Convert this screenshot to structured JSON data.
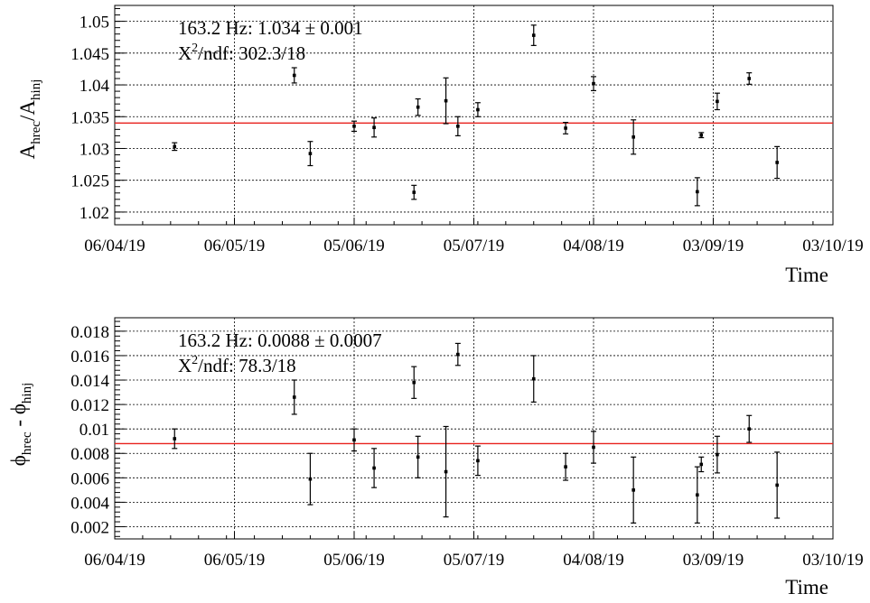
{
  "chart_data": [
    {
      "type": "scatter",
      "ylabel_base": "A",
      "ylabel_sub1": "hrec",
      "ylabel_sep": "/",
      "ylabel_sub2": "hinj",
      "xlabel": "Time",
      "xlim": [
        "2019-04-06",
        "2019-10-03"
      ],
      "ylim": [
        1.018,
        1.0525
      ],
      "x_ticks": [
        "06/04/19",
        "06/05/19",
        "05/06/19",
        "05/07/19",
        "04/08/19",
        "03/09/19",
        "03/10/19"
      ],
      "y_ticks": [
        "1.02",
        "1.025",
        "1.03",
        "1.035",
        "1.04",
        "1.045",
        "1.05"
      ],
      "fit_value": 1.034,
      "fit_color": "#e8201c",
      "annotation_line1": "163.2 Hz: 1.034  ± 0.001",
      "annotation_chi_base": "X",
      "annotation_chi_sup": "2",
      "annotation_chi_rest": "/ndf: 302.3/18",
      "grid": true,
      "points": [
        {
          "x": "2019-04-21",
          "y": 1.0303,
          "err": 0.0006
        },
        {
          "x": "2019-05-21",
          "y": 1.0415,
          "err": 0.0012
        },
        {
          "x": "2019-05-25",
          "y": 1.0292,
          "err": 0.0019
        },
        {
          "x": "2019-06-10",
          "y": 1.0333,
          "err": 0.0015
        },
        {
          "x": "2019-06-21",
          "y": 1.0365,
          "err": 0.0013
        },
        {
          "x": "2019-06-05",
          "y": 1.0335,
          "err": 0.0008
        },
        {
          "x": "2019-06-20",
          "y": 1.0231,
          "err": 0.0011
        },
        {
          "x": "2019-07-01",
          "y": 1.0335,
          "err": 0.0015
        },
        {
          "x": "2019-06-28",
          "y": 1.0375,
          "err": 0.0036
        },
        {
          "x": "2019-07-06",
          "y": 1.0361,
          "err": 0.0011
        },
        {
          "x": "2019-07-20",
          "y": 1.0478,
          "err": 0.0016
        },
        {
          "x": "2019-07-28",
          "y": 1.0332,
          "err": 0.0009
        },
        {
          "x": "2019-08-04",
          "y": 1.0402,
          "err": 0.0011
        },
        {
          "x": "2019-08-14",
          "y": 1.0318,
          "err": 0.0027
        },
        {
          "x": "2019-08-30",
          "y": 1.0232,
          "err": 0.0022
        },
        {
          "x": "2019-08-31",
          "y": 1.0321,
          "err": 0.0004
        },
        {
          "x": "2019-09-04",
          "y": 1.0374,
          "err": 0.0013
        },
        {
          "x": "2019-09-12",
          "y": 1.041,
          "err": 0.0009
        },
        {
          "x": "2019-09-19",
          "y": 1.0278,
          "err": 0.0025
        }
      ]
    },
    {
      "type": "scatter",
      "ylabel_base": "ϕ",
      "ylabel_sub1": "hrec",
      "ylabel_sep": " - ϕ",
      "ylabel_sub2": "hinj",
      "xlabel": "Time",
      "xlim": [
        "2019-04-06",
        "2019-10-03"
      ],
      "ylim": [
        0.001,
        0.0191
      ],
      "x_ticks": [
        "06/04/19",
        "06/05/19",
        "05/06/19",
        "05/07/19",
        "04/08/19",
        "03/09/19",
        "03/10/19"
      ],
      "y_ticks": [
        "0.002",
        "0.004",
        "0.006",
        "0.008",
        "0.01",
        "0.012",
        "0.014",
        "0.016",
        "0.018"
      ],
      "fit_value": 0.0088,
      "fit_color": "#e8201c",
      "annotation_line1": "163.2 Hz: 0.0088  ± 0.0007",
      "annotation_chi_base": "X",
      "annotation_chi_sup": "2",
      "annotation_chi_rest": "/ndf: 78.3/18",
      "grid": true,
      "points": [
        {
          "x": "2019-04-21",
          "y": 0.0092,
          "err": 0.0008
        },
        {
          "x": "2019-05-21",
          "y": 0.0126,
          "err": 0.0014
        },
        {
          "x": "2019-05-25",
          "y": 0.0059,
          "err": 0.0021
        },
        {
          "x": "2019-06-10",
          "y": 0.0068,
          "err": 0.0016
        },
        {
          "x": "2019-06-21",
          "y": 0.0077,
          "err": 0.0017
        },
        {
          "x": "2019-06-05",
          "y": 0.0091,
          "err": 0.0009
        },
        {
          "x": "2019-06-20",
          "y": 0.0138,
          "err": 0.0013
        },
        {
          "x": "2019-07-01",
          "y": 0.0161,
          "err": 0.0009
        },
        {
          "x": "2019-06-28",
          "y": 0.0065,
          "err": 0.0037
        },
        {
          "x": "2019-07-06",
          "y": 0.0074,
          "err": 0.0012
        },
        {
          "x": "2019-07-20",
          "y": 0.0141,
          "err": 0.0019
        },
        {
          "x": "2019-07-28",
          "y": 0.0069,
          "err": 0.0011
        },
        {
          "x": "2019-08-04",
          "y": 0.0085,
          "err": 0.0013
        },
        {
          "x": "2019-08-14",
          "y": 0.005,
          "err": 0.0027
        },
        {
          "x": "2019-08-30",
          "y": 0.0046,
          "err": 0.0023
        },
        {
          "x": "2019-08-31",
          "y": 0.0071,
          "err": 0.0006
        },
        {
          "x": "2019-09-04",
          "y": 0.0079,
          "err": 0.0015
        },
        {
          "x": "2019-09-12",
          "y": 0.01,
          "err": 0.0011
        },
        {
          "x": "2019-09-19",
          "y": 0.0054,
          "err": 0.0027
        }
      ]
    }
  ]
}
